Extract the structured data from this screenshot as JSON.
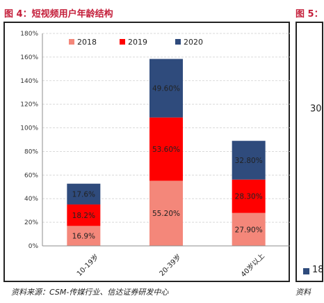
{
  "figure": {
    "title": "图 4：短视频用户年龄结构",
    "right_title": "图 5：",
    "right_fragment_mid": "30",
    "right_fragment_bottom": "18",
    "source": "资料来源：CSM-传媒行业、信达证券研发中心",
    "right_source": "资料"
  },
  "chart_data": {
    "type": "bar",
    "stacked": true,
    "title": "",
    "xlabel": "",
    "ylabel": "",
    "categories": [
      "10-19岁",
      "20-39岁",
      "40岁以上"
    ],
    "series": [
      {
        "name": "2018",
        "values": [
          16.9,
          55.2,
          27.9
        ],
        "labels": [
          "16.9%",
          "55.20%",
          "27.90%"
        ],
        "color": "#f4877a"
      },
      {
        "name": "2019",
        "values": [
          18.2,
          53.6,
          28.3
        ],
        "labels": [
          "18.2%",
          "53.60%",
          "28.30%"
        ],
        "color": "#ff0000"
      },
      {
        "name": "2020",
        "values": [
          17.6,
          49.6,
          32.8
        ],
        "labels": [
          "17.6%",
          "49.60%",
          "32.80%"
        ],
        "color": "#2f4b7c"
      }
    ],
    "ylim": [
      0,
      180
    ],
    "yticks": [
      0,
      20,
      40,
      60,
      80,
      100,
      120,
      140,
      160,
      180
    ],
    "ytick_labels": [
      "0%",
      "20%",
      "40%",
      "60%",
      "80%",
      "100%",
      "120%",
      "140%",
      "160%",
      "180%"
    ],
    "grid": true,
    "legend_position": "top"
  }
}
